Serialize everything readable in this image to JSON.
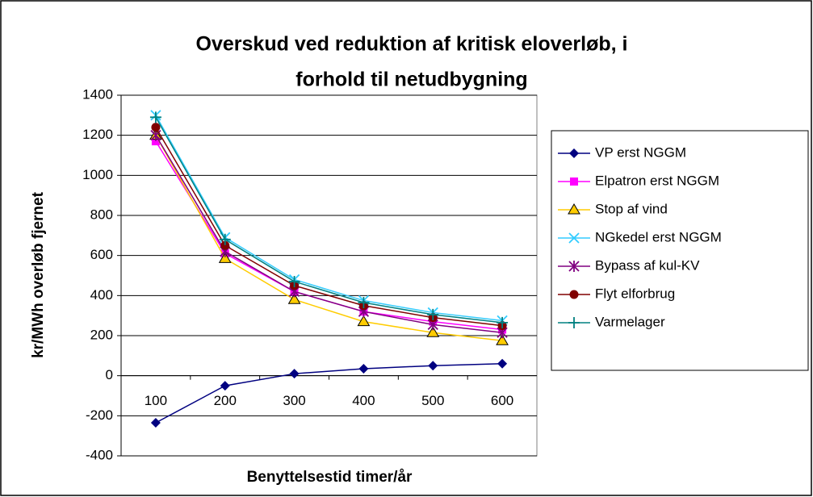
{
  "chart_data": {
    "type": "line",
    "title": "Overskud ved reduktion af kritisk eloverløb, i",
    "subtitle": "forhold til netudbygning",
    "x_label": "Benyttelsestid timer/år",
    "y_label": "kr/MWh overløb fjernet",
    "categories": [
      "100",
      "200",
      "300",
      "400",
      "500",
      "600"
    ],
    "ylim": [
      -400,
      1400
    ],
    "yticks": [
      -400,
      -200,
      0,
      200,
      400,
      600,
      800,
      1000,
      1200,
      1400
    ],
    "grid": true,
    "legend": "right",
    "series": [
      {
        "name": "VP erst NGGM",
        "color": "#000080",
        "marker": "diamond",
        "values": [
          -235,
          -50,
          10,
          35,
          50,
          60
        ]
      },
      {
        "name": "Elpatron erst NGGM",
        "color": "#ff00ff",
        "marker": "square",
        "values": [
          1170,
          610,
          420,
          320,
          270,
          230
        ]
      },
      {
        "name": "Stop af vind",
        "color": "#ffcc00",
        "marker": "triangle",
        "values": [
          1200,
          585,
          380,
          270,
          215,
          175
        ]
      },
      {
        "name": "NGkedel erst NGGM",
        "color": "#33ccff",
        "marker": "x",
        "values": [
          1300,
          690,
          480,
          375,
          315,
          275
        ]
      },
      {
        "name": "Bypass af kul-KV",
        "color": "#800080",
        "marker": "asterisk",
        "values": [
          1200,
          620,
          420,
          320,
          255,
          215
        ]
      },
      {
        "name": "Flyt elforbrug",
        "color": "#800000",
        "marker": "circle",
        "values": [
          1240,
          650,
          450,
          350,
          290,
          250
        ]
      },
      {
        "name": "Varmelager",
        "color": "#008080",
        "marker": "plus",
        "values": [
          1290,
          680,
          470,
          365,
          305,
          265
        ]
      }
    ]
  }
}
